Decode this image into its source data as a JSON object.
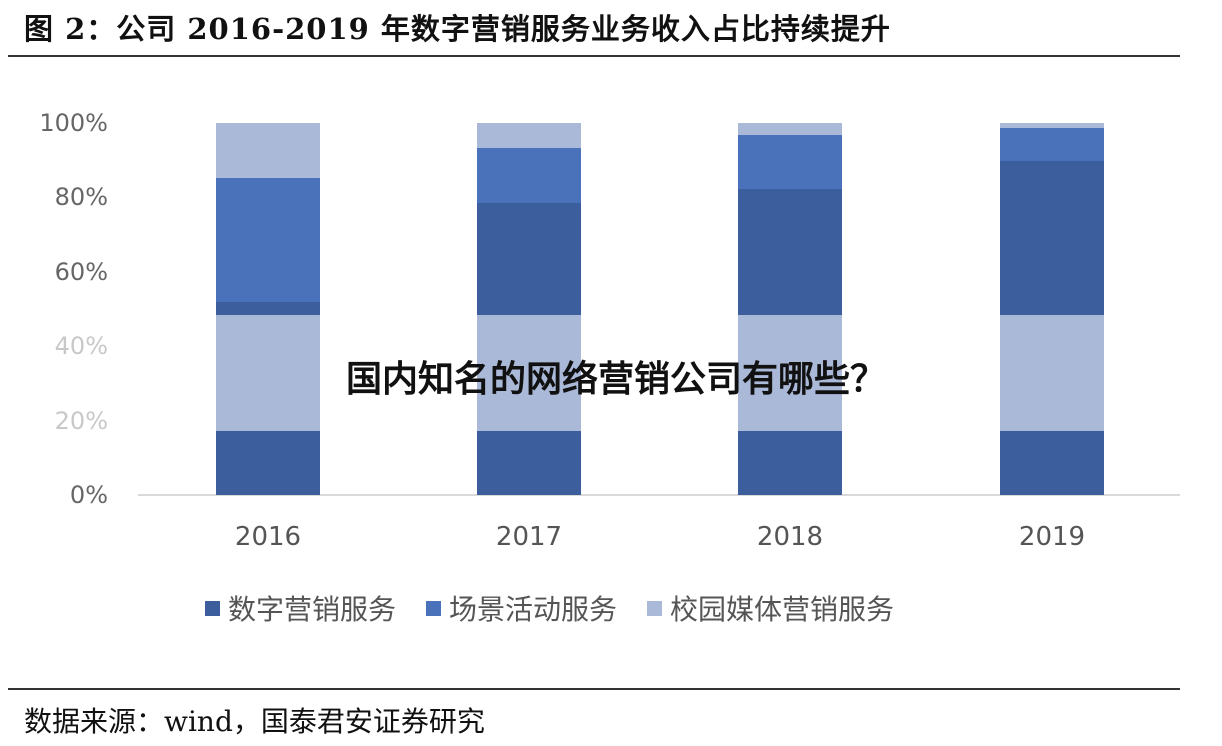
{
  "header": {
    "title": "图 2：公司 2016-2019 年数字营销服务业务收入占比持续提升"
  },
  "overlay_text": "国内知名的网络营销公司有哪些？",
  "footer": {
    "source": "数据来源：wind，国泰君安证券研究"
  },
  "colors": {
    "digital_marketing": "#3D5E9C",
    "scene_events": "#4A72BB",
    "campus_media": "#ABB9D9",
    "axis": "#D9D9D9",
    "tick_text": "#666666"
  },
  "y_axis": {
    "ticks": [
      "100%",
      "80%",
      "60%",
      "40%",
      "20%",
      "0%"
    ]
  },
  "legend": [
    {
      "label": "数字营销服务",
      "color": "#3D5E9C"
    },
    {
      "label": "场景活动服务",
      "color": "#4A72BB"
    },
    {
      "label": "校园媒体营销服务",
      "color": "#ABB9D9"
    }
  ],
  "chart_data": {
    "type": "bar",
    "stacked": true,
    "percent_stacked": true,
    "title": "图 2：公司 2016-2019 年数字营销服务业务收入占比持续提升",
    "xlabel": "",
    "ylabel": "",
    "ylim": [
      0,
      100
    ],
    "y_tick_labels": [
      "0%",
      "20%",
      "40%",
      "60%",
      "80%",
      "100%"
    ],
    "categories": [
      "2016",
      "2017",
      "2018",
      "2019"
    ],
    "legend_position": "bottom",
    "grid": false,
    "series": [
      {
        "name": "数字营销服务",
        "color": "#3D5E9C",
        "values": [
          3.5,
          30.1,
          33.9,
          41.4
        ]
      },
      {
        "name": "场景活动服务",
        "color": "#4A72BB",
        "values": [
          33.3,
          14.8,
          14.5,
          8.9
        ]
      },
      {
        "name": "校园媒体营销服务",
        "color": "#ABB9D9",
        "values": [
          14.8,
          6.7,
          3.2,
          1.3
        ]
      }
    ],
    "visible_segments_bottom_to_top": [
      {
        "category": "2016",
        "segments": [
          {
            "series": "数字营销服务",
            "from": 0,
            "to": 17.2
          },
          {
            "series": "校园媒体营销服务",
            "from": 17.2,
            "to": 48.4
          },
          {
            "series": "数字营销服务",
            "from": 48.4,
            "to": 51.9
          },
          {
            "series": "场景活动服务",
            "from": 51.9,
            "to": 85.2
          },
          {
            "series": "校园媒体营销服务",
            "from": 85.2,
            "to": 100
          }
        ]
      },
      {
        "category": "2017",
        "segments": [
          {
            "series": "数字营销服务",
            "from": 0,
            "to": 17.2
          },
          {
            "series": "校园媒体营销服务",
            "from": 17.2,
            "to": 48.4
          },
          {
            "series": "数字营销服务",
            "from": 48.4,
            "to": 78.5
          },
          {
            "series": "场景活动服务",
            "from": 78.5,
            "to": 93.3
          },
          {
            "series": "校园媒体营销服务",
            "from": 93.3,
            "to": 100
          }
        ]
      },
      {
        "category": "2018",
        "segments": [
          {
            "series": "数字营销服务",
            "from": 0,
            "to": 17.2
          },
          {
            "series": "校园媒体营销服务",
            "from": 17.2,
            "to": 48.4
          },
          {
            "series": "数字营销服务",
            "from": 48.4,
            "to": 82.3
          },
          {
            "series": "场景活动服务",
            "from": 82.3,
            "to": 96.8
          },
          {
            "series": "校园媒体营销服务",
            "from": 96.8,
            "to": 100
          }
        ]
      },
      {
        "category": "2019",
        "segments": [
          {
            "series": "数字营销服务",
            "from": 0,
            "to": 17.2
          },
          {
            "series": "校园媒体营销服务",
            "from": 17.2,
            "to": 48.4
          },
          {
            "series": "数字营销服务",
            "from": 48.4,
            "to": 89.8
          },
          {
            "series": "场景活动服务",
            "from": 89.8,
            "to": 98.7
          },
          {
            "series": "校园媒体营销服务",
            "from": 98.7,
            "to": 100
          }
        ]
      }
    ]
  }
}
